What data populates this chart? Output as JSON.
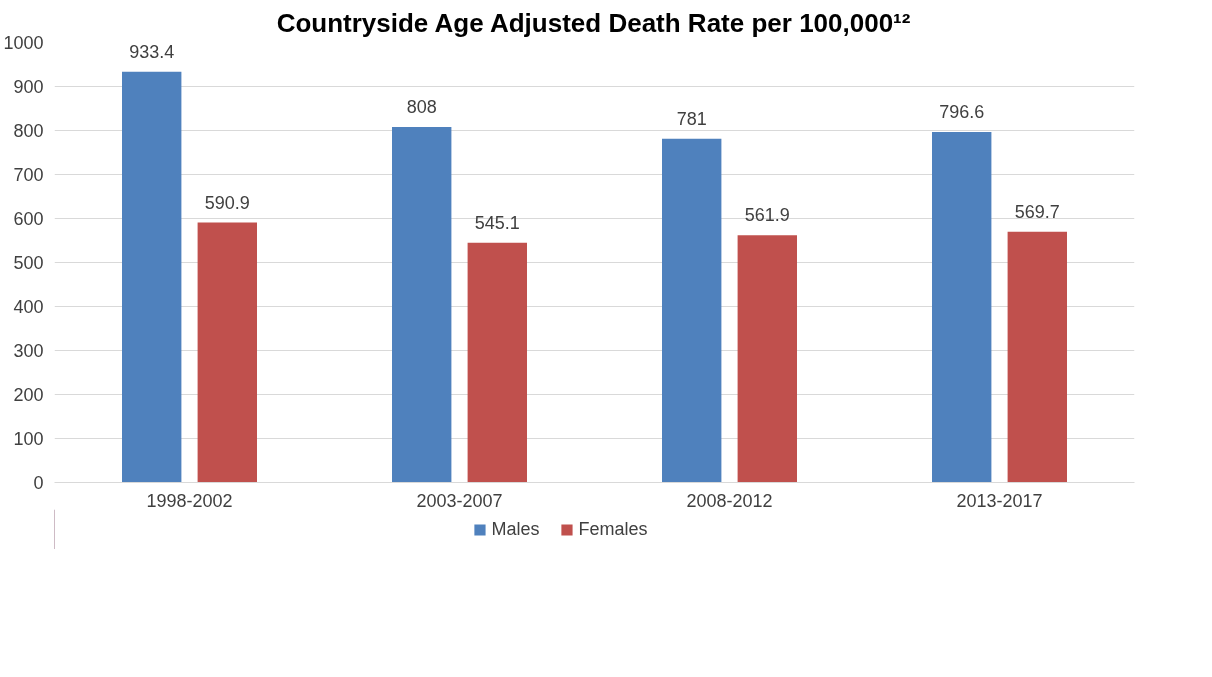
{
  "chart_data": {
    "type": "bar",
    "title": "Countryside Age Adjusted Death Rate per 100,000¹²",
    "categories": [
      "1998-2002",
      "2003-2007",
      "2008-2012",
      "2013-2017"
    ],
    "series": [
      {
        "name": "Males",
        "color": "#4f81bd",
        "values": [
          933.4,
          808,
          781,
          796.6
        ]
      },
      {
        "name": "Females",
        "color": "#c0504d",
        "values": [
          590.9,
          545.1,
          561.9,
          569.7
        ]
      }
    ],
    "ylim": [
      0,
      1000
    ],
    "yticks": [
      0,
      100,
      200,
      300,
      400,
      500,
      600,
      700,
      800,
      900,
      1000
    ],
    "grid": "y",
    "legend": "bottom",
    "data_labels": true
  }
}
